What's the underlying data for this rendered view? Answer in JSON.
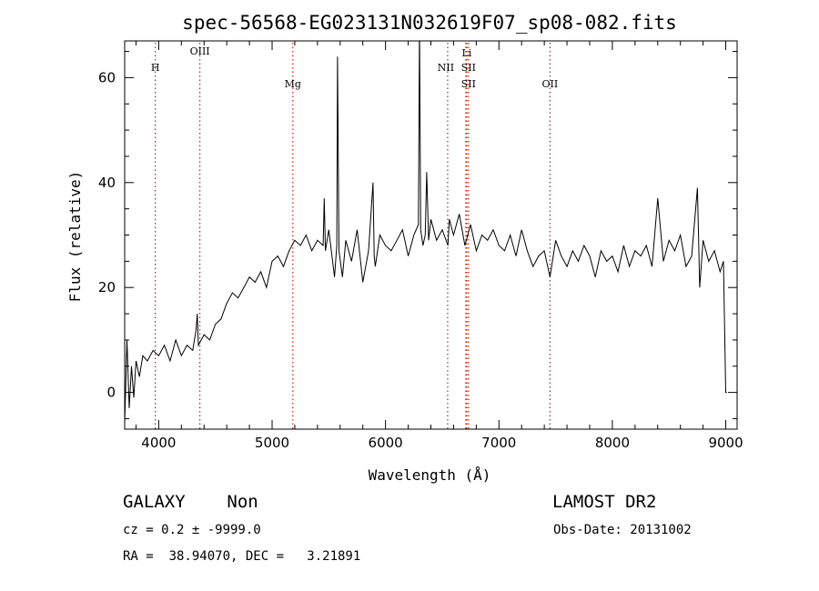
{
  "chart_data": {
    "type": "line",
    "title": "spec-56568-EG023131N032619F07_sp08-082.fits",
    "xlabel": "Wavelength (Å)",
    "ylabel": "Flux (relative)",
    "xlim": [
      3700,
      9100
    ],
    "ylim": [
      -7,
      67
    ],
    "x_ticks": [
      4000,
      5000,
      6000,
      7000,
      8000,
      9000
    ],
    "y_ticks": [
      0,
      20,
      40,
      60
    ],
    "x_tick_labels": [
      "4000",
      "5000",
      "6000",
      "7000",
      "8000",
      "9000"
    ],
    "y_tick_labels": [
      "0",
      "20",
      "40",
      "60"
    ],
    "grid": false,
    "line_color": "#000000",
    "series": [
      {
        "x": [
          3700,
          3720,
          3740,
          3760,
          3780,
          3800,
          3830,
          3860,
          3900,
          3950,
          4000,
          4050,
          4100,
          4150,
          4200,
          4250,
          4300,
          4330,
          4340,
          4350,
          4400,
          4450,
          4500,
          4550,
          4600,
          4650,
          4700,
          4750,
          4800,
          4850,
          4900,
          4950,
          5000,
          5050,
          5100,
          5150,
          5200,
          5250,
          5300,
          5350,
          5400,
          5450,
          5460,
          5470,
          5500,
          5550,
          5570,
          5577,
          5590,
          5620,
          5650,
          5700,
          5750,
          5800,
          5850,
          5890,
          5900,
          5910,
          5950,
          6000,
          6050,
          6100,
          6150,
          6200,
          6250,
          6290,
          6300,
          6310,
          6330,
          6350,
          6363,
          6380,
          6400,
          6450,
          6500,
          6550,
          6563,
          6600,
          6650,
          6700,
          6750,
          6800,
          6850,
          6900,
          6950,
          7000,
          7050,
          7100,
          7150,
          7200,
          7250,
          7300,
          7350,
          7400,
          7450,
          7500,
          7550,
          7600,
          7650,
          7700,
          7750,
          7800,
          7850,
          7900,
          7950,
          8000,
          8050,
          8100,
          8150,
          8200,
          8250,
          8300,
          8350,
          8400,
          8450,
          8500,
          8550,
          8600,
          8650,
          8700,
          8750,
          8770,
          8800,
          8850,
          8900,
          8950,
          8980,
          9000,
          9010
        ],
        "y": [
          -6,
          10,
          -3,
          5,
          -1,
          6,
          3,
          7,
          6,
          8,
          7,
          9,
          6,
          10,
          7,
          9,
          8,
          12,
          15,
          9,
          11,
          10,
          13,
          14,
          17,
          19,
          18,
          20,
          22,
          21,
          23,
          20,
          25,
          26,
          24,
          27,
          29,
          28,
          30,
          27,
          29,
          28,
          37,
          27,
          31,
          22,
          28,
          64,
          27,
          22,
          29,
          25,
          31,
          21,
          27,
          40,
          26,
          24,
          30,
          28,
          27,
          29,
          31,
          26,
          30,
          32,
          70,
          31,
          28,
          30,
          42,
          29,
          33,
          29,
          31,
          28,
          33,
          30,
          34,
          28,
          32,
          27,
          30,
          29,
          31,
          28,
          27,
          30,
          26,
          31,
          27,
          24,
          26,
          27,
          22,
          29,
          26,
          24,
          27,
          25,
          28,
          26,
          22,
          27,
          25,
          26,
          23,
          28,
          24,
          27,
          26,
          28,
          24,
          37,
          25,
          29,
          27,
          30,
          24,
          26,
          39,
          20,
          29,
          25,
          27,
          23,
          25,
          0,
          0
        ]
      }
    ],
    "lines": [
      {
        "x": 3970,
        "label": "H",
        "color": "#7a3b3b"
      },
      {
        "x": 4363,
        "label": "OIII",
        "color": "#7a3b3b"
      },
      {
        "x": 5183,
        "label": "Mg",
        "color": "#cc2200"
      },
      {
        "x": 6548,
        "label": "NII",
        "color": "#7a3b3b"
      },
      {
        "x": 6708,
        "label": "Li",
        "color": "#cc2200"
      },
      {
        "x": 6716,
        "label": "SII",
        "color": "#cc2200"
      },
      {
        "x": 6731,
        "label": "SII",
        "color": "#cc2200"
      },
      {
        "x": 7450,
        "label": "OII",
        "color": "#7a3b3b"
      }
    ]
  },
  "info": {
    "class_text": "GALAXY    Non",
    "survey_text": "LAMOST DR2",
    "cz_text": "cz = 0.2 ± -9999.0",
    "obs_date_text": "Obs-Date: 20131002",
    "radec_text": "RA =  38.94070, DEC =   3.21891"
  }
}
